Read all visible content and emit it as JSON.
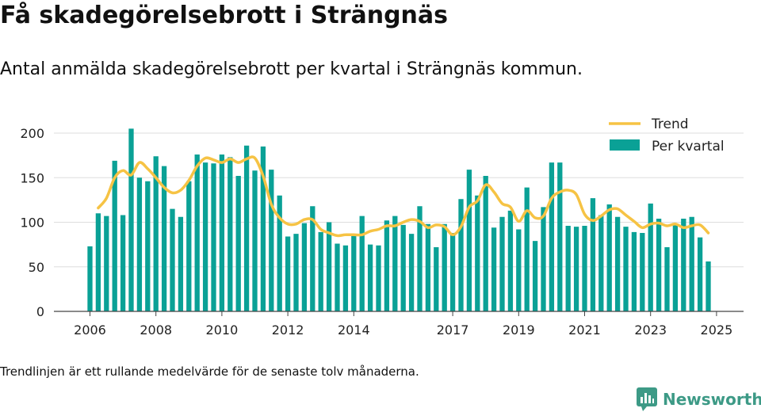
{
  "title": "Få skadegörelsebrott i Strängnäs",
  "subtitle": "Antal anmälda skadegörelsebrott per kvartal i Strängnäs kommun.",
  "footnote": "Trendlinjen är ett rullande medelvärde för de senaste tolv månaderna.",
  "brand": {
    "name": "Newsworthy",
    "icon": "newsworthy-logo-icon"
  },
  "colors": {
    "bars": "#0aa196",
    "trend": "#f6c344",
    "grid": "#dddddd",
    "brand": "#3d9a86"
  },
  "chart_data": {
    "type": "bar",
    "title": "",
    "xlabel": "",
    "ylabel": "",
    "ylim": [
      0,
      210
    ],
    "y_ticks": [
      0,
      50,
      100,
      150,
      200
    ],
    "grid": true,
    "legend_position": "top-right",
    "x_tick_labels": [
      {
        "label": "2006",
        "index": 0
      },
      {
        "label": "2008",
        "index": 8
      },
      {
        "label": "2010",
        "index": 16
      },
      {
        "label": "2012",
        "index": 24
      },
      {
        "label": "2014",
        "index": 32
      },
      {
        "label": "2017",
        "index": 44
      },
      {
        "label": "2019",
        "index": 52
      },
      {
        "label": "2021",
        "index": 60
      },
      {
        "label": "2023",
        "index": 68
      },
      {
        "label": "2025",
        "index": 76
      }
    ],
    "series": [
      {
        "name": "Per kvartal",
        "kind": "bar",
        "values": [
          73,
          110,
          107,
          169,
          108,
          205,
          150,
          146,
          174,
          163,
          115,
          106,
          146,
          176,
          167,
          166,
          176,
          173,
          152,
          186,
          158,
          185,
          159,
          130,
          84,
          87,
          99,
          118,
          89,
          100,
          76,
          74,
          85,
          107,
          75,
          74,
          102,
          107,
          97,
          87,
          118,
          98,
          72,
          98,
          88,
          126,
          159,
          130,
          152,
          94,
          106,
          113,
          92,
          139,
          79,
          117,
          167,
          167,
          96,
          95,
          96,
          127,
          108,
          120,
          106,
          95,
          89,
          88,
          121,
          104,
          72,
          97,
          104,
          106,
          83,
          56
        ]
      },
      {
        "name": "Trend",
        "kind": "line",
        "start_index": 1,
        "values": [
          116,
          127,
          150,
          158,
          153,
          167,
          160,
          150,
          139,
          133,
          136,
          147,
          163,
          172,
          170,
          167,
          171,
          167,
          171,
          172,
          152,
          120,
          105,
          98,
          98,
          103,
          103,
          92,
          88,
          85,
          86,
          86,
          86,
          90,
          92,
          96,
          96,
          100,
          103,
          101,
          94,
          97,
          95,
          86,
          95,
          117,
          124,
          142,
          134,
          121,
          117,
          101,
          113,
          105,
          107,
          127,
          134,
          136,
          131,
          109,
          102,
          107,
          114,
          115,
          108,
          101,
          94,
          98,
          99,
          96,
          98,
          94,
          96,
          97,
          88
        ]
      }
    ]
  }
}
